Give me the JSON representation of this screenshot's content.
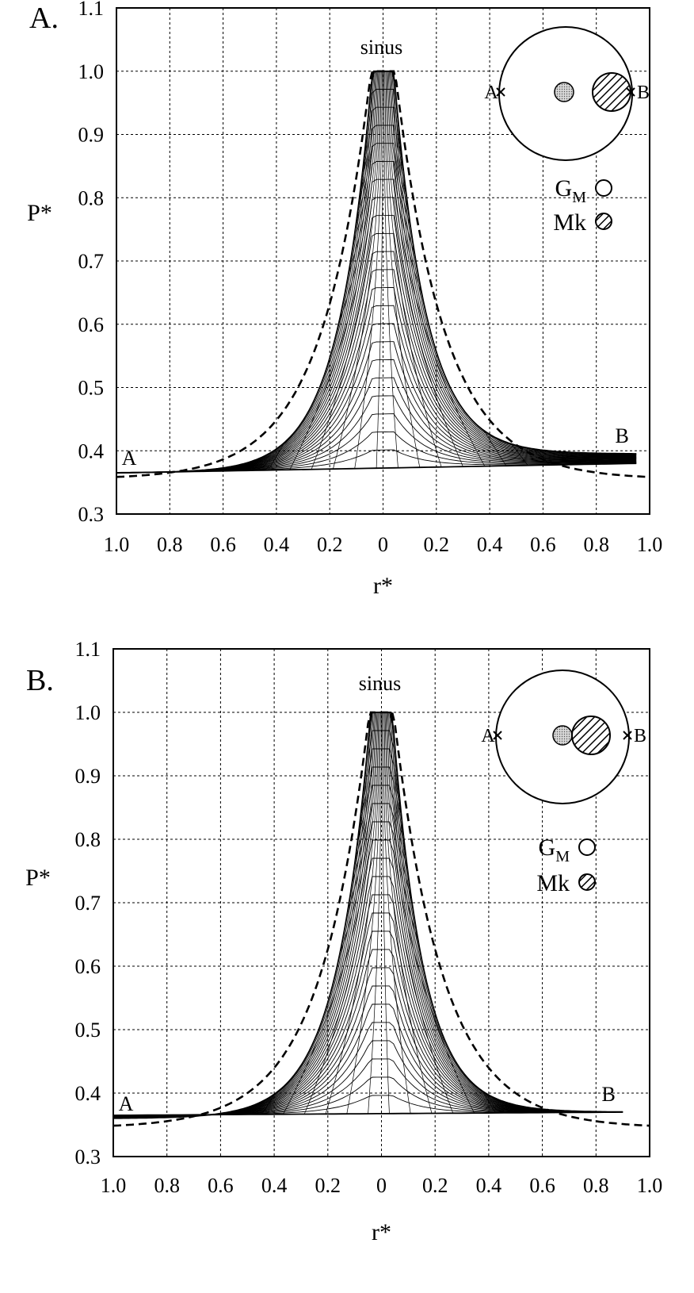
{
  "chart_data": [
    {
      "panel_label": "A.",
      "type": "line",
      "ylabel": "P*",
      "xlabel": "r*",
      "ylim": [
        0.3,
        1.1
      ],
      "yticks": [
        "1.1",
        "1.0",
        "0.9",
        "0.8",
        "0.7",
        "0.6",
        "0.5",
        "0.4",
        "0.3"
      ],
      "xticks": [
        "1.0",
        "0.8",
        "0.6",
        "0.4",
        "0.2",
        "0",
        "0.2",
        "0.4",
        "0.6",
        "0.8",
        "1.0"
      ],
      "grid": true,
      "annotations": {
        "peak": "sinus",
        "left_end": "A",
        "right_end": "B"
      },
      "mesh": {
        "peak": 1.0,
        "left_end": 0.365,
        "right_end": 0.395,
        "right_end_r": 0.95,
        "base_left": 0.365,
        "base_right": 0.38
      },
      "dashed_curve": {
        "peak": 1.0,
        "left_end": 0.355,
        "right_end": 0.355
      },
      "inset": {
        "marker_left": "A",
        "marker_right": "B",
        "legend": [
          {
            "symbol": "open",
            "label": "G",
            "subscript": "M"
          },
          {
            "symbol": "hatched",
            "label": "Mk",
            "subscript": ""
          }
        ]
      }
    },
    {
      "panel_label": "B.",
      "type": "line",
      "ylabel": "P*",
      "xlabel": "r*",
      "ylim": [
        0.3,
        1.1
      ],
      "yticks": [
        "1.1",
        "1.0",
        "0.9",
        "0.8",
        "0.7",
        "0.6",
        "0.5",
        "0.4",
        "0.3"
      ],
      "xticks": [
        "1.0",
        "0.8",
        "0.6",
        "0.4",
        "0.2",
        "0",
        "0.2",
        "0.4",
        "0.6",
        "0.8",
        "1.0"
      ],
      "grid": true,
      "annotations": {
        "peak": "sinus",
        "left_end": "A",
        "right_end": "B"
      },
      "mesh": {
        "peak": 1.0,
        "left_end": 0.36,
        "right_end": 0.37,
        "right_end_r": 0.9,
        "base_left": 0.365,
        "base_right": 0.37
      },
      "dashed_curve": {
        "peak": 1.0,
        "left_end": 0.345,
        "right_end": 0.345
      },
      "inset": {
        "marker_left": "A",
        "marker_right": "B",
        "legend": [
          {
            "symbol": "open",
            "label": "G",
            "subscript": "M"
          },
          {
            "symbol": "hatched",
            "label": "Mk",
            "subscript": ""
          }
        ]
      }
    }
  ]
}
